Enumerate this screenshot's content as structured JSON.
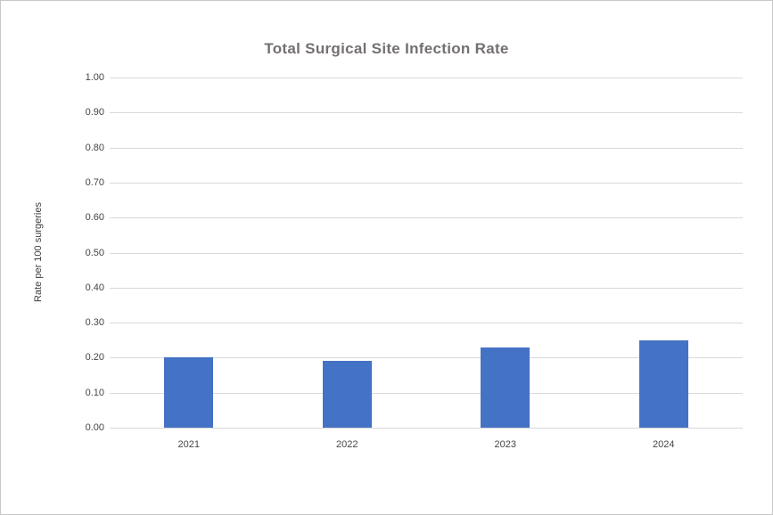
{
  "chart_data": {
    "type": "bar",
    "title": "Total Surgical Site Infection Rate",
    "ylabel": "Rate per 100 surgeries",
    "xlabel": "",
    "categories": [
      "2021",
      "2022",
      "2023",
      "2024"
    ],
    "values": [
      0.2,
      0.19,
      0.23,
      0.25
    ],
    "ylim": [
      0.0,
      1.0
    ],
    "ytick_step": 0.1,
    "ytick_labels": [
      "0.00",
      "0.10",
      "0.20",
      "0.30",
      "0.40",
      "0.50",
      "0.60",
      "0.70",
      "0.80",
      "0.90",
      "1.00"
    ],
    "grid": "horizontal",
    "legend_position": "none"
  },
  "colors": {
    "bar": "#4472c4",
    "gridline": "#d9d9d9",
    "title_text": "#757070",
    "axis_text": "#454545",
    "border": "#c8c8c8",
    "background": "#ffffff"
  }
}
